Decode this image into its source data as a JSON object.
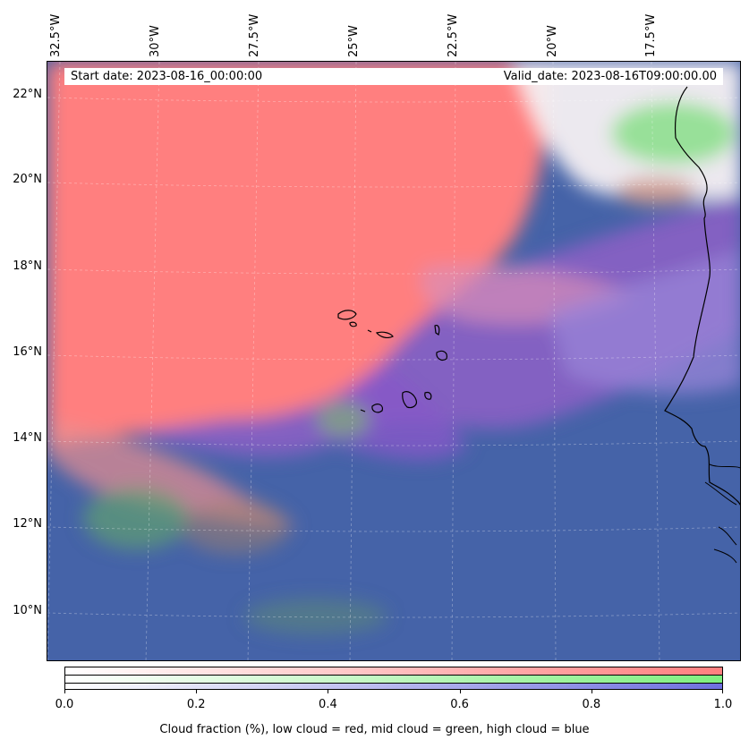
{
  "map": {
    "longitude_labels": [
      "32.5°W",
      "30°W",
      "27.5°W",
      "25°W",
      "22.5°W",
      "20°W",
      "17.5°W"
    ],
    "latitude_labels": [
      "22°N",
      "20°N",
      "18°N",
      "16°N",
      "14°N",
      "12°N",
      "10°N"
    ],
    "start_date": "Start date: 2023-08-16_00:00:00",
    "valid_date": "Valid_date: 2023-08-16T09:00:00.00",
    "colors": {
      "low_cloud": "#ff7f7f",
      "mid_cloud": "#7fef7f",
      "high_cloud": "#6f6fdf",
      "clear": "#4563a8"
    }
  },
  "colorbar": {
    "ticks": [
      "0.0",
      "0.2",
      "0.4",
      "0.6",
      "0.8",
      "1.0"
    ],
    "range": [
      0.0,
      1.0
    ],
    "label": "Cloud fraction (%), low cloud = red, mid cloud = green, high cloud = blue"
  }
}
